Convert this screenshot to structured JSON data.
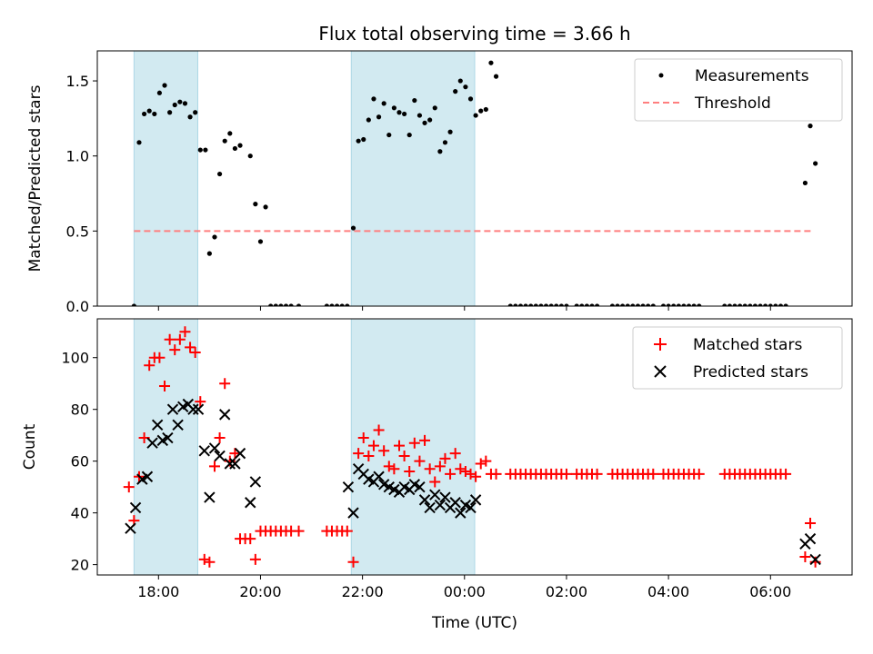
{
  "figure_title": "Flux total observing time = 3.66 h",
  "colors": {
    "shade": "#add8e6",
    "measurement": "#000000",
    "threshold": "#ff7f7f",
    "matched": "#ff0000",
    "predicted": "#000000"
  },
  "chart_data": [
    {
      "type": "scatter",
      "ylabel": "Matched/Predicted stars",
      "xlim": [
        16.8,
        31.6
      ],
      "ylim": [
        0,
        1.7
      ],
      "yticks": [
        0.0,
        0.5,
        1.0,
        1.5
      ],
      "ytick_labels": [
        "0.0",
        "0.5",
        "1.0",
        "1.5"
      ],
      "xtick_values": [
        18,
        20,
        22,
        24,
        26,
        28,
        30
      ],
      "xtick_labels": [],
      "grid": false,
      "legend": {
        "position": "top-right",
        "entries": [
          "Measurements",
          "Threshold"
        ]
      },
      "shaded_spans": [
        [
          17.52,
          18.77
        ],
        [
          21.78,
          24.2
        ]
      ],
      "threshold": {
        "name": "Threshold",
        "y": 0.5,
        "x_start": 17.52,
        "x_end": 30.82
      },
      "series": [
        {
          "name": "Measurements",
          "x": [
            17.52,
            17.62,
            17.72,
            17.82,
            17.92,
            18.02,
            18.12,
            18.22,
            18.32,
            18.42,
            18.52,
            18.62,
            18.72,
            18.82,
            18.92,
            19.0,
            19.1,
            19.2,
            19.3,
            19.4,
            19.5,
            19.6,
            19.8,
            19.9,
            20.0,
            20.1,
            20.2,
            20.3,
            20.4,
            20.5,
            20.6,
            20.75,
            21.3,
            21.4,
            21.5,
            21.6,
            21.7,
            21.82,
            21.92,
            22.02,
            22.12,
            22.22,
            22.32,
            22.42,
            22.52,
            22.62,
            22.72,
            22.82,
            22.92,
            23.02,
            23.12,
            23.22,
            23.32,
            23.42,
            23.52,
            23.62,
            23.72,
            23.82,
            23.92,
            24.02,
            24.12,
            24.22,
            24.32,
            24.42,
            24.52,
            24.62,
            24.9,
            25.0,
            25.1,
            25.2,
            25.3,
            25.4,
            25.5,
            25.6,
            25.7,
            25.8,
            25.9,
            26.0,
            26.2,
            26.3,
            26.4,
            26.5,
            26.6,
            26.9,
            27.0,
            27.1,
            27.2,
            27.3,
            27.4,
            27.5,
            27.6,
            27.7,
            27.9,
            28.0,
            28.1,
            28.2,
            28.3,
            28.4,
            28.5,
            28.6,
            29.1,
            29.2,
            29.3,
            29.4,
            29.5,
            29.6,
            29.7,
            29.8,
            29.9,
            30.0,
            30.1,
            30.2,
            30.3,
            30.68,
            30.78,
            30.88
          ],
          "y": [
            0,
            1.09,
            1.28,
            1.3,
            1.28,
            1.42,
            1.47,
            1.29,
            1.34,
            1.36,
            1.35,
            1.26,
            1.29,
            1.04,
            1.04,
            0.35,
            0.46,
            0.88,
            1.1,
            1.15,
            1.05,
            1.07,
            1.0,
            0.68,
            0.43,
            0.66,
            0,
            0,
            0,
            0,
            0,
            0,
            0,
            0,
            0,
            0,
            0,
            0.52,
            1.1,
            1.11,
            1.24,
            1.38,
            1.26,
            1.35,
            1.14,
            1.32,
            1.29,
            1.28,
            1.14,
            1.37,
            1.27,
            1.22,
            1.24,
            1.32,
            1.03,
            1.09,
            1.16,
            1.43,
            1.5,
            1.46,
            1.38,
            1.27,
            1.3,
            1.31,
            1.62,
            1.53,
            0,
            0,
            0,
            0,
            0,
            0,
            0,
            0,
            0,
            0,
            0,
            0,
            0,
            0,
            0,
            0,
            0,
            0,
            0,
            0,
            0,
            0,
            0,
            0,
            0,
            0,
            0,
            0,
            0,
            0,
            0,
            0,
            0,
            0,
            0,
            0,
            0,
            0,
            0,
            0,
            0,
            0,
            0,
            0,
            0,
            0,
            0,
            0.82,
            1.2,
            0.95
          ]
        }
      ]
    },
    {
      "type": "scatter",
      "ylabel": "Count",
      "xlabel": "Time (UTC)",
      "xlim": [
        16.8,
        31.6
      ],
      "ylim": [
        16,
        115
      ],
      "yticks": [
        20,
        40,
        60,
        80,
        100
      ],
      "ytick_labels": [
        "20",
        "40",
        "60",
        "80",
        "100"
      ],
      "xtick_values": [
        18,
        20,
        22,
        24,
        26,
        28,
        30
      ],
      "xtick_labels": [
        "18:00",
        "20:00",
        "22:00",
        "00:00",
        "02:00",
        "04:00",
        "06:00"
      ],
      "grid": false,
      "legend": {
        "position": "top-right",
        "entries": [
          "Matched stars",
          "Predicted stars"
        ]
      },
      "shaded_spans": [
        [
          17.52,
          18.77
        ],
        [
          21.78,
          24.2
        ]
      ],
      "series": [
        {
          "name": "Matched stars",
          "marker": "plus",
          "x": [
            17.42,
            17.52,
            17.62,
            17.72,
            17.82,
            17.92,
            18.02,
            18.12,
            18.22,
            18.32,
            18.42,
            18.52,
            18.62,
            18.72,
            18.82,
            18.9,
            19.0,
            19.1,
            19.2,
            19.3,
            19.4,
            19.5,
            19.6,
            19.7,
            19.8,
            19.9,
            20.0,
            20.1,
            20.2,
            20.3,
            20.4,
            20.5,
            20.6,
            20.75,
            21.3,
            21.4,
            21.5,
            21.6,
            21.7,
            21.82,
            21.92,
            22.02,
            22.12,
            22.22,
            22.32,
            22.42,
            22.52,
            22.62,
            22.72,
            22.82,
            22.92,
            23.02,
            23.12,
            23.22,
            23.32,
            23.42,
            23.52,
            23.62,
            23.72,
            23.82,
            23.92,
            24.02,
            24.12,
            24.22,
            24.32,
            24.42,
            24.52,
            24.62,
            24.9,
            25.0,
            25.1,
            25.2,
            25.3,
            25.4,
            25.5,
            25.6,
            25.7,
            25.8,
            25.9,
            26.0,
            26.2,
            26.3,
            26.4,
            26.5,
            26.6,
            26.9,
            27.0,
            27.1,
            27.2,
            27.3,
            27.4,
            27.5,
            27.6,
            27.7,
            27.9,
            28.0,
            28.1,
            28.2,
            28.3,
            28.4,
            28.5,
            28.6,
            29.1,
            29.2,
            29.3,
            29.4,
            29.5,
            29.6,
            29.7,
            29.8,
            29.9,
            30.0,
            30.1,
            30.2,
            30.3,
            30.68,
            30.78,
            30.88
          ],
          "y": [
            50,
            37,
            54,
            69,
            97,
            100,
            100,
            89,
            107,
            103,
            107,
            110,
            104,
            102,
            83,
            22,
            21,
            58,
            69,
            90,
            60,
            63,
            30,
            30,
            30,
            22,
            33,
            33,
            33,
            33,
            33,
            33,
            33,
            33,
            33,
            33,
            33,
            33,
            33,
            21,
            63,
            69,
            62,
            66,
            72,
            64,
            58,
            57,
            66,
            62,
            56,
            67,
            60,
            68,
            57,
            52,
            58,
            61,
            55,
            63,
            57,
            56,
            55,
            54,
            59,
            60,
            55,
            55,
            55,
            55,
            55,
            55,
            55,
            55,
            55,
            55,
            55,
            55,
            55,
            55,
            55,
            55,
            55,
            55,
            55,
            55,
            55,
            55,
            55,
            55,
            55,
            55,
            55,
            55,
            55,
            55,
            55,
            55,
            55,
            55,
            55,
            55,
            55,
            55,
            55,
            55,
            55,
            55,
            55,
            55,
            55,
            55,
            55,
            55,
            55,
            23,
            36,
            21
          ]
        },
        {
          "name": "Predicted stars",
          "marker": "x",
          "x": [
            17.45,
            17.55,
            17.68,
            17.78,
            17.88,
            17.98,
            18.08,
            18.18,
            18.28,
            18.38,
            18.48,
            18.58,
            18.68,
            18.78,
            18.9,
            19.0,
            19.1,
            19.2,
            19.3,
            19.4,
            19.5,
            19.6,
            19.8,
            19.9,
            21.72,
            21.82,
            21.92,
            22.02,
            22.12,
            22.22,
            22.32,
            22.42,
            22.52,
            22.62,
            22.72,
            22.82,
            22.92,
            23.02,
            23.12,
            23.22,
            23.32,
            23.42,
            23.52,
            23.62,
            23.72,
            23.82,
            23.92,
            24.02,
            24.12,
            24.22,
            30.68,
            30.78,
            30.88
          ],
          "y": [
            34,
            42,
            53,
            54,
            67,
            74,
            68,
            69,
            80,
            74,
            81,
            82,
            80,
            80,
            64,
            46,
            65,
            62,
            78,
            59,
            59,
            63,
            44,
            52,
            50,
            40,
            57,
            55,
            53,
            52,
            54,
            51,
            50,
            49,
            48,
            50,
            49,
            51,
            50,
            45,
            42,
            47,
            43,
            46,
            42,
            44,
            40,
            43,
            42,
            45,
            28,
            30,
            22
          ]
        }
      ]
    }
  ]
}
